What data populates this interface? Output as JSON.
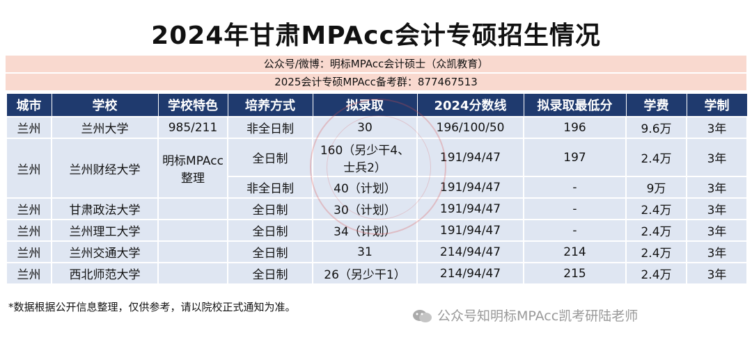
{
  "title": "2024年甘肃MPAcc会计专硕招生情况",
  "subtitle1": "公众号/微博：明标MPAcc会计硕士（众凯教育）",
  "subtitle2": "2025会计专硕MPAcc备考群：877467513",
  "table": {
    "headers": [
      "城市",
      "学校",
      "学校特色",
      "培养方式",
      "拟录取",
      "2024分数线",
      "拟录取最低分",
      "学费",
      "学制"
    ],
    "rows": [
      {
        "city": "兰州",
        "school": "兰州大学",
        "feature": "985/211",
        "mode": "非全日制",
        "admit": "30",
        "line": "196/100/50",
        "min": "196",
        "fee": "9.6万",
        "years": "3年"
      },
      {
        "city": "兰州",
        "school": "兰州财经大学",
        "feature": "明标MPAcc整理",
        "mode": "全日制",
        "admit": "160（另少干4、士兵2）",
        "line": "191/94/47",
        "min": "197",
        "fee": "2.4万",
        "years": "3年"
      },
      {
        "mode": "非全日制",
        "admit": "40（计划）",
        "line": "191/94/47",
        "min": "-",
        "fee": "9万",
        "years": "3年"
      },
      {
        "city": "兰州",
        "school": "甘肃政法大学",
        "feature": "",
        "mode": "全日制",
        "admit": "30（计划）",
        "line": "191/94/47",
        "min": "-",
        "fee": "2.4万",
        "years": "3年"
      },
      {
        "city": "兰州",
        "school": "兰州理工大学",
        "feature": "",
        "mode": "全日制",
        "admit": "34（计划）",
        "line": "191/94/47",
        "min": "-",
        "fee": "2.4万",
        "years": "3年"
      },
      {
        "city": "兰州",
        "school": "兰州交通大学",
        "feature": "",
        "mode": "全日制",
        "admit": "31",
        "line": "214/94/47",
        "min": "214",
        "fee": "2.4万",
        "years": "3年"
      },
      {
        "city": "兰州",
        "school": "西北师范大学",
        "feature": "",
        "mode": "全日制",
        "admit": "26（另少干1）",
        "line": "214/94/47",
        "min": "215",
        "fee": "2.4万",
        "years": "3年"
      }
    ]
  },
  "note": "*数据根据公开信息整理，仅供参考，请以院校正式通知为准。",
  "watermark": "公众号知明标MPAcc凯考研陆老师",
  "stamp_text": "众凯明标MPAcc"
}
